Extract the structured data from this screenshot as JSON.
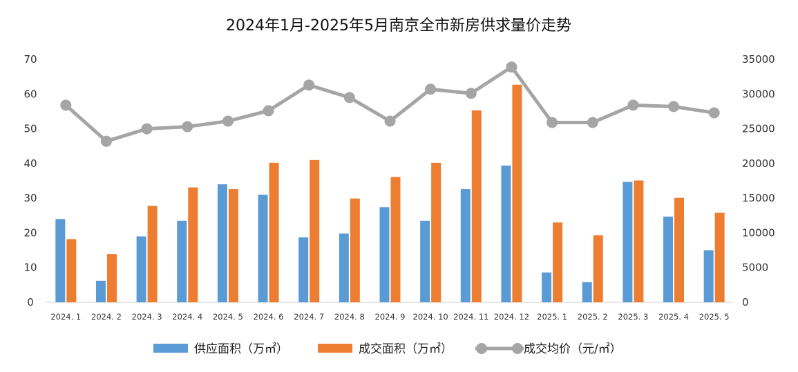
{
  "chart_data": {
    "type": "bar",
    "title": "2024年1月-2025年5月南京全市新房供求量价走势",
    "categories": [
      "2024.1",
      "2024.2",
      "2024.3",
      "2024.4",
      "2024.5",
      "2024.6",
      "2024.7",
      "2024.8",
      "2024.9",
      "2024.10",
      "2024.11",
      "2024.12",
      "2025.1",
      "2025.2",
      "2025.3",
      "2025.4",
      "2025.5"
    ],
    "series": [
      {
        "name": "供应面积（万㎡）",
        "kind": "bar",
        "axis": "left",
        "color": "#5B9BD5",
        "values": [
          24,
          6.2,
          19,
          23.5,
          34,
          31,
          18.7,
          19.8,
          27.4,
          23.5,
          32.6,
          39.4,
          8.6,
          5.8,
          34.7,
          24.7,
          15
        ]
      },
      {
        "name": "成交面积（万㎡）",
        "kind": "bar",
        "axis": "left",
        "color": "#ED7D31",
        "values": [
          18.2,
          13.9,
          27.8,
          33.1,
          32.6,
          40.2,
          41,
          29.9,
          36.1,
          40.2,
          55.3,
          62.7,
          23,
          19.3,
          35.1,
          30.1,
          25.8
        ]
      },
      {
        "name": "成交均价（元/㎡）",
        "kind": "line",
        "axis": "right",
        "color": "#A5A5A5",
        "values": [
          28400,
          23200,
          25000,
          25300,
          26100,
          27600,
          31300,
          29500,
          26100,
          30700,
          30100,
          33900,
          25900,
          25900,
          28400,
          28200,
          27300
        ]
      }
    ],
    "y_left": {
      "min": 0,
      "max": 70,
      "ticks": [
        "0",
        "10",
        "20",
        "30",
        "40",
        "50",
        "60",
        "70"
      ]
    },
    "y_right": {
      "min": 0,
      "max": 35000,
      "ticks": [
        "0",
        "5000",
        "10000",
        "15000",
        "20000",
        "25000",
        "30000",
        "35000"
      ]
    },
    "x_tick_labels": [
      "2024. 1",
      "2024. 2",
      "2024. 3",
      "2024. 4",
      "2024. 5",
      "2024. 6",
      "2024. 7",
      "2024. 8",
      "2024. 9",
      "2024. 10",
      "2024. 11",
      "2024. 12",
      "2025. 1",
      "2025. 2",
      "2025. 3",
      "2025. 4",
      "2025. 5"
    ],
    "grid": false,
    "legend_position": "bottom"
  }
}
